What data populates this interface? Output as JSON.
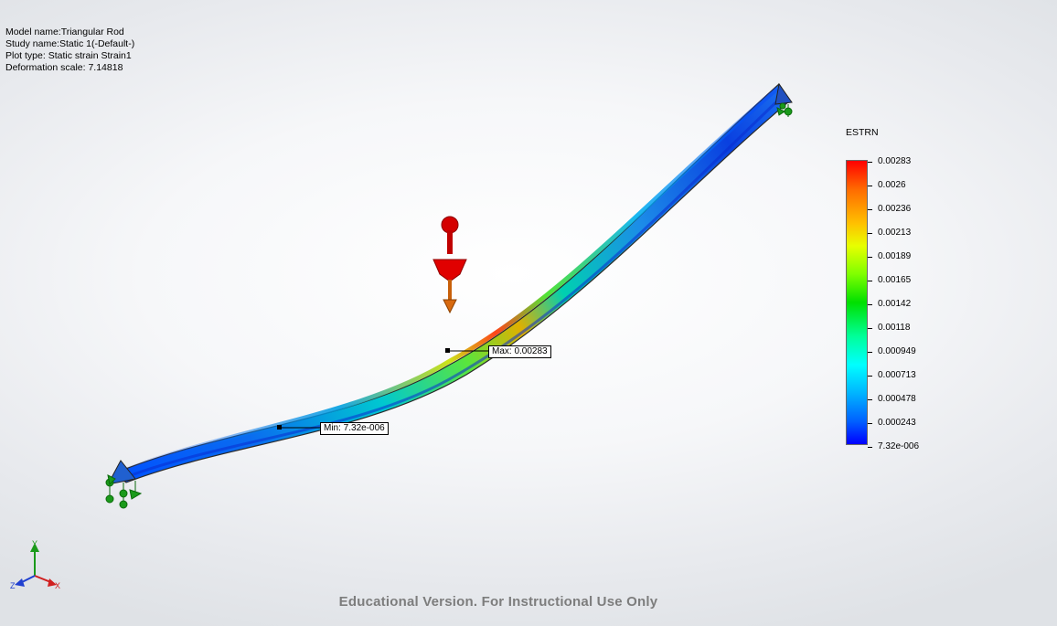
{
  "info": {
    "model_name": "Model name:Triangular Rod",
    "study_name": "Study name:Static 1(-Default-)",
    "plot_type": "Plot type: Static strain Strain1",
    "deformation_scale": "Deformation scale: 7.14818"
  },
  "legend": {
    "title": "ESTRN",
    "ticks": [
      "0.00283",
      "0.0026",
      "0.00236",
      "0.00213",
      "0.00189",
      "0.00165",
      "0.00142",
      "0.00118",
      "0.000949",
      "0.000713",
      "0.000478",
      "0.000243",
      "7.32e-006"
    ],
    "colors": {
      "max": "#ff0000",
      "mid": "#00ff00",
      "min": "#0000ff"
    }
  },
  "probes": {
    "max_label": "Max: 0.00283",
    "min_label": "Min: 7.32e-006"
  },
  "triad": {
    "x": "X",
    "y": "Y",
    "z": "Z"
  },
  "watermark": "Educational Version. For Instructional Use Only"
}
